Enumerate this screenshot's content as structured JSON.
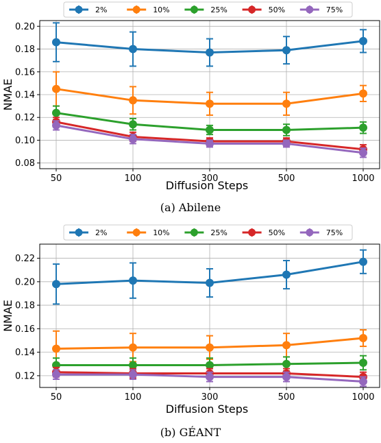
{
  "chart_data": [
    {
      "type": "line",
      "caption": "(a)  Abilene",
      "xlabel": "Diffusion Steps",
      "ylabel": "NMAE",
      "categories": [
        "50",
        "100",
        "300",
        "500",
        "1000"
      ],
      "ylim": [
        0.075,
        0.205
      ],
      "yticks": [
        "0.08",
        "0.10",
        "0.12",
        "0.14",
        "0.16",
        "0.18",
        "0.20"
      ],
      "grid": true,
      "legend": "top, outside",
      "series": [
        {
          "name": "2%",
          "color": "#1f77b4",
          "values": [
            0.186,
            0.18,
            0.177,
            0.179,
            0.187
          ],
          "err": [
            0.017,
            0.015,
            0.012,
            0.012,
            0.01
          ]
        },
        {
          "name": "10%",
          "color": "#ff7f0e",
          "values": [
            0.145,
            0.135,
            0.132,
            0.132,
            0.141
          ],
          "err": [
            0.015,
            0.012,
            0.01,
            0.01,
            0.007
          ]
        },
        {
          "name": "25%",
          "color": "#2ca02c",
          "values": [
            0.124,
            0.114,
            0.109,
            0.109,
            0.111
          ],
          "err": [
            0.006,
            0.005,
            0.004,
            0.005,
            0.005
          ]
        },
        {
          "name": "50%",
          "color": "#d62728",
          "values": [
            0.116,
            0.103,
            0.099,
            0.099,
            0.092
          ],
          "err": [
            0.004,
            0.004,
            0.003,
            0.003,
            0.004
          ]
        },
        {
          "name": "75%",
          "color": "#9467bd",
          "values": [
            0.113,
            0.101,
            0.097,
            0.097,
            0.089
          ],
          "err": [
            0.004,
            0.004,
            0.003,
            0.003,
            0.004
          ]
        }
      ]
    },
    {
      "type": "line",
      "caption": "(b)  GÉANT",
      "xlabel": "Diffusion Steps",
      "ylabel": "NMAE",
      "categories": [
        "50",
        "100",
        "300",
        "500",
        "1000"
      ],
      "ylim": [
        0.11,
        0.232
      ],
      "yticks": [
        "0.12",
        "0.14",
        "0.16",
        "0.18",
        "0.20",
        "0.22"
      ],
      "grid": true,
      "legend": "top, outside",
      "series": [
        {
          "name": "2%",
          "color": "#1f77b4",
          "values": [
            0.198,
            0.201,
            0.199,
            0.206,
            0.217
          ],
          "err": [
            0.017,
            0.015,
            0.012,
            0.012,
            0.01
          ]
        },
        {
          "name": "10%",
          "color": "#ff7f0e",
          "values": [
            0.143,
            0.144,
            0.144,
            0.146,
            0.152
          ],
          "err": [
            0.015,
            0.012,
            0.01,
            0.01,
            0.007
          ]
        },
        {
          "name": "25%",
          "color": "#2ca02c",
          "values": [
            0.129,
            0.129,
            0.129,
            0.13,
            0.131
          ],
          "err": [
            0.006,
            0.006,
            0.006,
            0.006,
            0.006
          ]
        },
        {
          "name": "50%",
          "color": "#d62728",
          "values": [
            0.123,
            0.122,
            0.122,
            0.122,
            0.119
          ],
          "err": [
            0.004,
            0.004,
            0.004,
            0.004,
            0.004
          ]
        },
        {
          "name": "75%",
          "color": "#9467bd",
          "values": [
            0.121,
            0.121,
            0.119,
            0.119,
            0.115
          ],
          "err": [
            0.004,
            0.004,
            0.004,
            0.004,
            0.004
          ]
        }
      ]
    }
  ]
}
